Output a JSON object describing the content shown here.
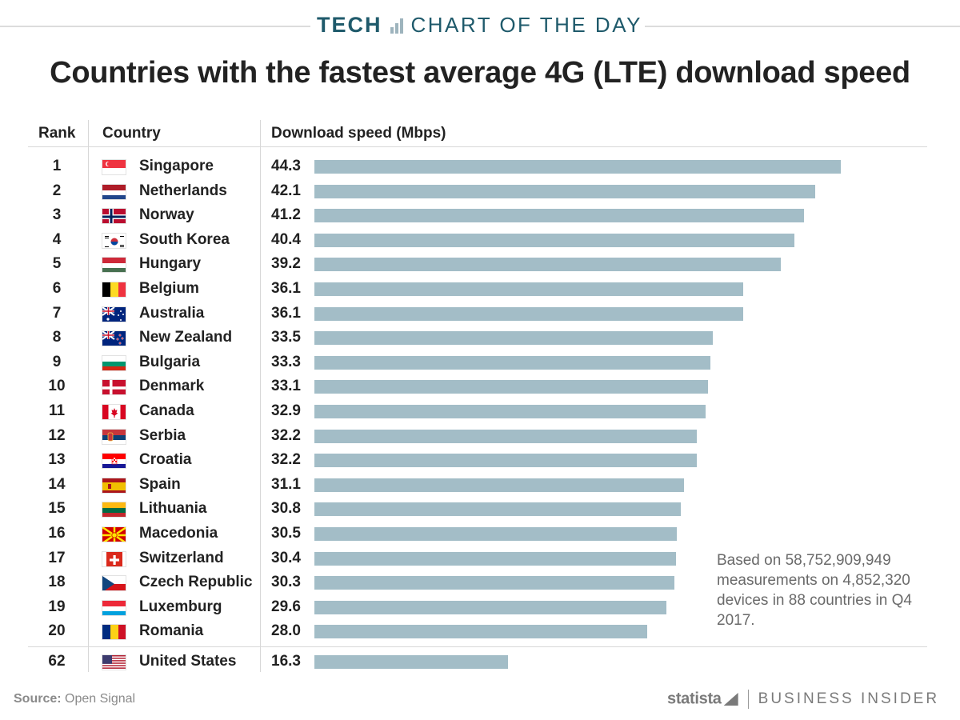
{
  "header": {
    "kicker_bold": "TECH",
    "kicker_rest": "CHART OF THE DAY",
    "title": "Countries with the fastest average 4G (LTE) download speed"
  },
  "table": {
    "columns": [
      "Rank",
      "Country",
      "Download speed (Mbps)"
    ]
  },
  "chart_data": {
    "type": "bar",
    "orientation": "horizontal",
    "title": "Countries with the fastest average 4G (LTE) download speed",
    "value_label": "Download speed (Mbps)",
    "xlim": [
      0,
      50
    ],
    "grid": false,
    "rows": [
      {
        "rank": "1",
        "country": "Singapore",
        "value": 44.3,
        "label": "44.3",
        "flag": "singapore-flag"
      },
      {
        "rank": "2",
        "country": "Netherlands",
        "value": 42.1,
        "label": "42.1",
        "flag": "netherlands-flag"
      },
      {
        "rank": "3",
        "country": "Norway",
        "value": 41.2,
        "label": "41.2",
        "flag": "norway-flag"
      },
      {
        "rank": "4",
        "country": "South Korea",
        "value": 40.4,
        "label": "40.4",
        "flag": "south-korea-flag"
      },
      {
        "rank": "5",
        "country": "Hungary",
        "value": 39.2,
        "label": "39.2",
        "flag": "hungary-flag"
      },
      {
        "rank": "6",
        "country": "Belgium",
        "value": 36.1,
        "label": "36.1",
        "flag": "belgium-flag"
      },
      {
        "rank": "7",
        "country": "Australia",
        "value": 36.1,
        "label": "36.1",
        "flag": "australia-flag"
      },
      {
        "rank": "8",
        "country": "New Zealand",
        "value": 33.5,
        "label": "33.5",
        "flag": "new-zealand-flag"
      },
      {
        "rank": "9",
        "country": "Bulgaria",
        "value": 33.3,
        "label": "33.3",
        "flag": "bulgaria-flag"
      },
      {
        "rank": "10",
        "country": "Denmark",
        "value": 33.1,
        "label": "33.1",
        "flag": "denmark-flag"
      },
      {
        "rank": "11",
        "country": "Canada",
        "value": 32.9,
        "label": "32.9",
        "flag": "canada-flag"
      },
      {
        "rank": "12",
        "country": "Serbia",
        "value": 32.2,
        "label": "32.2",
        "flag": "serbia-flag"
      },
      {
        "rank": "13",
        "country": "Croatia",
        "value": 32.2,
        "label": "32.2",
        "flag": "croatia-flag"
      },
      {
        "rank": "14",
        "country": "Spain",
        "value": 31.1,
        "label": "31.1",
        "flag": "spain-flag"
      },
      {
        "rank": "15",
        "country": "Lithuania",
        "value": 30.8,
        "label": "30.8",
        "flag": "lithuania-flag"
      },
      {
        "rank": "16",
        "country": "Macedonia",
        "value": 30.5,
        "label": "30.5",
        "flag": "macedonia-flag"
      },
      {
        "rank": "17",
        "country": "Switzerland",
        "value": 30.4,
        "label": "30.4",
        "flag": "switzerland-flag"
      },
      {
        "rank": "18",
        "country": "Czech Republic",
        "value": 30.3,
        "label": "30.3",
        "flag": "czech-republic-flag"
      },
      {
        "rank": "19",
        "country": "Luxemburg",
        "value": 29.6,
        "label": "29.6",
        "flag": "luxemburg-flag"
      },
      {
        "rank": "20",
        "country": "Romania",
        "value": 28.0,
        "label": "28.0",
        "flag": "romania-flag"
      },
      {
        "rank": "62",
        "country": "United States",
        "value": 16.3,
        "label": "16.3",
        "flag": "united-states-flag"
      }
    ],
    "bar_color": "#a3bdc7",
    "annotation": "Based on 58,752,909,949 measurements on 4,852,320 devices in 88 countries in Q4 2017."
  },
  "footer": {
    "source_label": "Source:",
    "source_value": "Open Signal",
    "statista": "statista",
    "publisher": "BUSINESS INSIDER"
  },
  "colors": {
    "accent": "#1f5a6b",
    "bar": "#a3bdc7",
    "text": "#222222",
    "muted": "#6a6a6a"
  }
}
